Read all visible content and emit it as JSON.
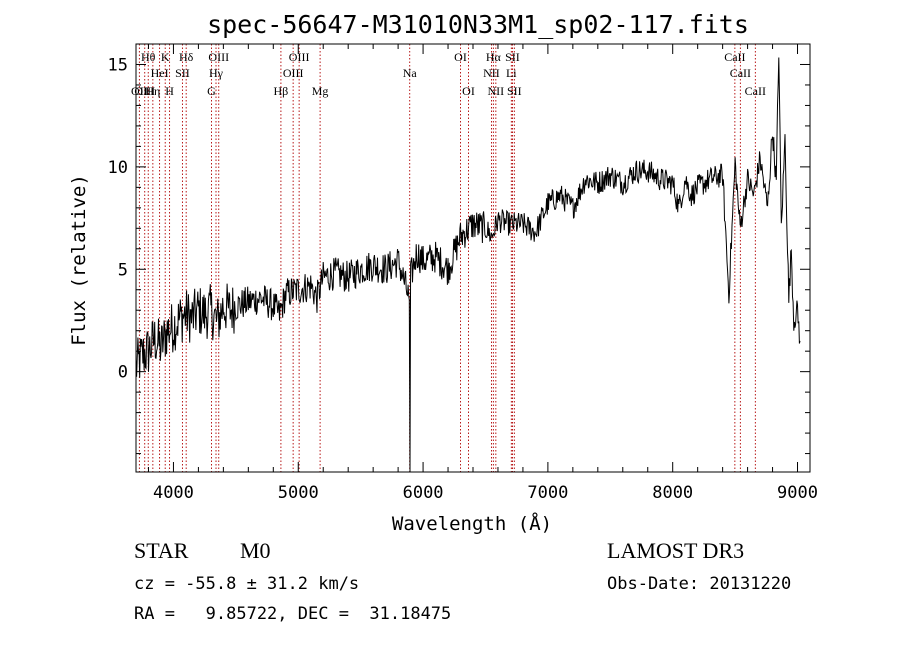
{
  "chart_data": {
    "type": "line",
    "title": "spec-56647-M31010N33M1_sp02-117.fits",
    "xlabel": "Wavelength (Å)",
    "ylabel": "Flux (relative)",
    "xlim": [
      3700,
      9100
    ],
    "ylim": [
      -4.9,
      16.0
    ],
    "xticks": [
      4000,
      5000,
      6000,
      7000,
      8000,
      9000
    ],
    "yticks": [
      0,
      5,
      10,
      15
    ],
    "grid": false,
    "series": [
      {
        "name": "flux",
        "x": [
          3700,
          3750,
          3800,
          3850,
          3900,
          3950,
          4000,
          4050,
          4100,
          4150,
          4200,
          4250,
          4300,
          4350,
          4400,
          4450,
          4500,
          4600,
          4700,
          4800,
          4850,
          4900,
          5000,
          5100,
          5150,
          5200,
          5300,
          5400,
          5500,
          5600,
          5700,
          5800,
          5850,
          5890,
          5895,
          5900,
          5950,
          6000,
          6100,
          6200,
          6300,
          6400,
          6500,
          6550,
          6600,
          6700,
          6800,
          6900,
          7000,
          7100,
          7200,
          7300,
          7400,
          7500,
          7600,
          7700,
          7800,
          7900,
          8000,
          8050,
          8100,
          8150,
          8200,
          8300,
          8400,
          8450,
          8500,
          8540,
          8600,
          8650,
          8700,
          8760,
          8800,
          8830,
          8850,
          8870,
          8900,
          8930,
          8950,
          8970,
          9000,
          9020
        ],
        "y": [
          0.2,
          0.8,
          1.0,
          1.6,
          1.2,
          2.0,
          2.2,
          2.6,
          2.8,
          2.6,
          3.0,
          2.8,
          3.0,
          2.4,
          3.2,
          3.0,
          3.2,
          3.4,
          3.6,
          3.2,
          2.8,
          3.8,
          4.0,
          4.2,
          3.6,
          4.6,
          4.8,
          4.6,
          5.0,
          5.2,
          5.0,
          5.4,
          4.4,
          3.5,
          -4.9,
          4.6,
          5.8,
          5.4,
          5.6,
          5.0,
          6.6,
          7.2,
          7.0,
          6.6,
          7.4,
          7.2,
          7.2,
          6.8,
          8.2,
          8.6,
          8.0,
          9.4,
          9.2,
          9.6,
          9.2,
          9.8,
          9.8,
          9.4,
          9.2,
          8.0,
          9.4,
          8.6,
          9.0,
          9.4,
          9.6,
          3.8,
          10.2,
          7.0,
          9.4,
          8.6,
          10.4,
          8.0,
          11.8,
          9.2,
          15.8,
          7.0,
          11.4,
          3.5,
          6.0,
          2.5,
          3.0,
          1.5
        ]
      }
    ],
    "lines": [
      {
        "wl": 3727,
        "label": "OII",
        "row": 3
      },
      {
        "wl": 3770,
        "label": "OIII",
        "row": 3
      },
      {
        "wl": 3798,
        "label": "Hθ",
        "row": 1
      },
      {
        "wl": 3835,
        "label": "Hη",
        "row": 3
      },
      {
        "wl": 3889,
        "label": "HeI",
        "row": 2
      },
      {
        "wl": 3934,
        "label": "K",
        "row": 1
      },
      {
        "wl": 3969,
        "label": "H",
        "row": 3
      },
      {
        "wl": 4072,
        "label": "SII",
        "row": 2
      },
      {
        "wl": 4102,
        "label": "Hδ",
        "row": 1
      },
      {
        "wl": 4305,
        "label": "G",
        "row": 3
      },
      {
        "wl": 4341,
        "label": "Hγ",
        "row": 2
      },
      {
        "wl": 4363,
        "label": "OIII",
        "row": 1
      },
      {
        "wl": 4861,
        "label": "Hβ",
        "row": 3
      },
      {
        "wl": 4959,
        "label": "OIII",
        "row": 2
      },
      {
        "wl": 5007,
        "label": "OIII",
        "row": 1
      },
      {
        "wl": 5175,
        "label": "Mg",
        "row": 3
      },
      {
        "wl": 5893,
        "label": "Na",
        "row": 2
      },
      {
        "wl": 6300,
        "label": "OI",
        "row": 1
      },
      {
        "wl": 6364,
        "label": "OI",
        "row": 3
      },
      {
        "wl": 6548,
        "label": "NII",
        "row": 2
      },
      {
        "wl": 6563,
        "label": "Hα",
        "row": 1
      },
      {
        "wl": 6583,
        "label": "NII",
        "row": 3
      },
      {
        "wl": 6707,
        "label": "Li",
        "row": 2
      },
      {
        "wl": 6716,
        "label": "SII",
        "row": 1
      },
      {
        "wl": 6731,
        "label": "SII",
        "row": 3
      },
      {
        "wl": 8498,
        "label": "CaII",
        "row": 1
      },
      {
        "wl": 8542,
        "label": "CaII",
        "row": 2
      },
      {
        "wl": 8662,
        "label": "CaII",
        "row": 3
      }
    ]
  },
  "info": {
    "class": "STAR",
    "subclass": "M0",
    "survey": "LAMOST DR3",
    "cz": "cz = -55.8 ± 31.2 km/s",
    "obsdate": "Obs-Date: 20131220",
    "radec": "RA =   9.85722, DEC =  31.18475"
  }
}
